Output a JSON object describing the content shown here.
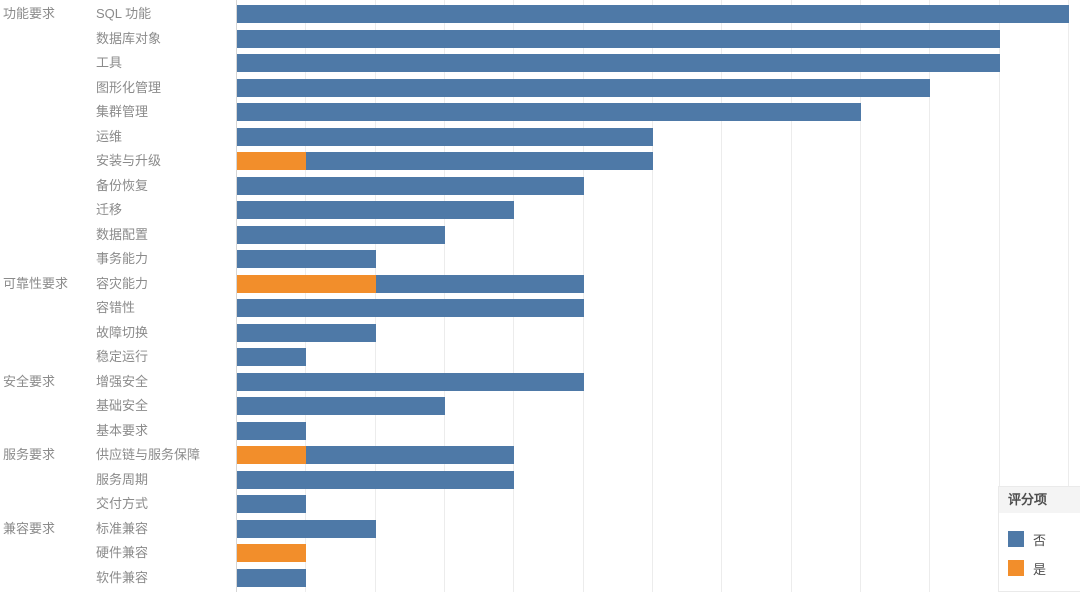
{
  "chart_data": {
    "type": "bar",
    "orientation": "horizontal",
    "stacked": true,
    "title": "",
    "xlabel": "",
    "ylabel": "",
    "xlim": [
      0,
      12
    ],
    "gridline_interval": 1,
    "grid": true,
    "colors": {
      "no": "#4e79a7",
      "yes": "#f28e2b"
    },
    "legend": {
      "title": "评分项",
      "position": "bottom-right",
      "entries": [
        {
          "key": "no",
          "label": "否",
          "color": "#4e79a7"
        },
        {
          "key": "yes",
          "label": "是",
          "color": "#f28e2b"
        }
      ]
    },
    "group_labels": [
      "功能要求",
      "可靠性要求",
      "安全要求",
      "服务要求",
      "兼容要求"
    ],
    "rows": [
      {
        "group": "功能要求",
        "label": "SQL 功能",
        "yes": 0,
        "no": 12
      },
      {
        "group": "",
        "label": "数据库对象",
        "yes": 0,
        "no": 11
      },
      {
        "group": "",
        "label": "工具",
        "yes": 0,
        "no": 11
      },
      {
        "group": "",
        "label": "图形化管理",
        "yes": 0,
        "no": 10
      },
      {
        "group": "",
        "label": "集群管理",
        "yes": 0,
        "no": 9
      },
      {
        "group": "",
        "label": "运维",
        "yes": 0,
        "no": 6
      },
      {
        "group": "",
        "label": "安装与升级",
        "yes": 1,
        "no": 5
      },
      {
        "group": "",
        "label": "备份恢复",
        "yes": 0,
        "no": 5
      },
      {
        "group": "",
        "label": "迁移",
        "yes": 0,
        "no": 4
      },
      {
        "group": "",
        "label": "数据配置",
        "yes": 0,
        "no": 3
      },
      {
        "group": "",
        "label": "事务能力",
        "yes": 0,
        "no": 2
      },
      {
        "group": "可靠性要求",
        "label": "容灾能力",
        "yes": 2,
        "no": 3
      },
      {
        "group": "",
        "label": "容错性",
        "yes": 0,
        "no": 5
      },
      {
        "group": "",
        "label": "故障切换",
        "yes": 0,
        "no": 2
      },
      {
        "group": "",
        "label": "稳定运行",
        "yes": 0,
        "no": 1
      },
      {
        "group": "安全要求",
        "label": "增强安全",
        "yes": 0,
        "no": 5
      },
      {
        "group": "",
        "label": "基础安全",
        "yes": 0,
        "no": 3
      },
      {
        "group": "",
        "label": "基本要求",
        "yes": 0,
        "no": 1
      },
      {
        "group": "服务要求",
        "label": "供应链与服务保障",
        "yes": 1,
        "no": 3
      },
      {
        "group": "",
        "label": "服务周期",
        "yes": 0,
        "no": 4
      },
      {
        "group": "",
        "label": "交付方式",
        "yes": 0,
        "no": 1
      },
      {
        "group": "兼容要求",
        "label": "标准兼容",
        "yes": 0,
        "no": 2
      },
      {
        "group": "",
        "label": "硬件兼容",
        "yes": 1,
        "no": 0
      },
      {
        "group": "",
        "label": "软件兼容",
        "yes": 0,
        "no": 1
      }
    ]
  }
}
